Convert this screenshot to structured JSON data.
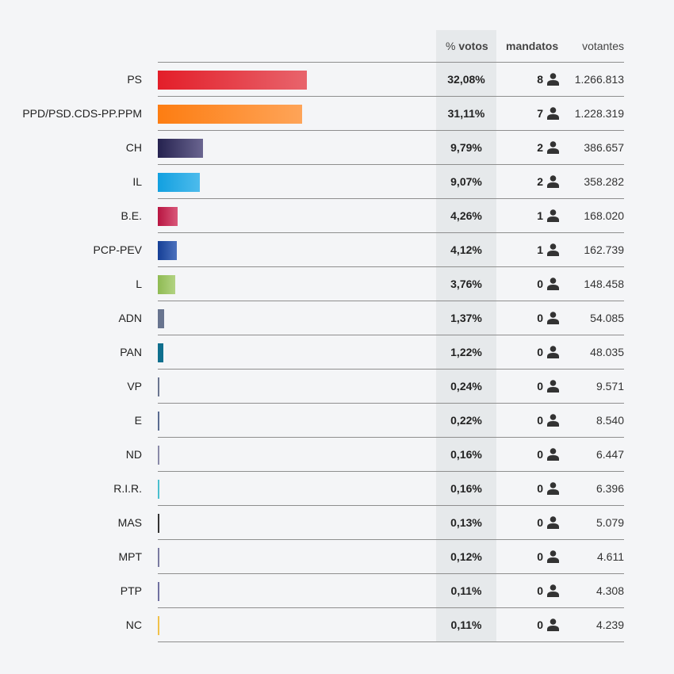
{
  "headers": {
    "pct_prefix": "% ",
    "pct": "votos",
    "seats": "mandatos",
    "votes": "votantes"
  },
  "chart_data": {
    "type": "bar",
    "orientation": "horizontal",
    "unit": "%",
    "categories": [
      "PS",
      "PPD/PSD.CDS-PP.PPM",
      "CH",
      "IL",
      "B.E.",
      "PCP-PEV",
      "L",
      "ADN",
      "PAN",
      "VP",
      "E",
      "ND",
      "R.I.R.",
      "MAS",
      "MPT",
      "PTP",
      "NC"
    ],
    "values": [
      32.08,
      31.11,
      9.79,
      9.07,
      4.26,
      4.12,
      3.76,
      1.37,
      1.22,
      0.24,
      0.22,
      0.16,
      0.16,
      0.13,
      0.12,
      0.11,
      0.11
    ],
    "pct_labels": [
      "32,08%",
      "31,11%",
      "9,79%",
      "9,07%",
      "4,26%",
      "4,12%",
      "3,76%",
      "1,37%",
      "1,22%",
      "0,24%",
      "0,22%",
      "0,16%",
      "0,16%",
      "0,13%",
      "0,12%",
      "0,11%",
      "0,11%"
    ],
    "seats": [
      "8",
      "7",
      "2",
      "2",
      "1",
      "1",
      "0",
      "0",
      "0",
      "0",
      "0",
      "0",
      "0",
      "0",
      "0",
      "0",
      "0"
    ],
    "votes": [
      "1.266.813",
      "1.228.319",
      "386.657",
      "358.282",
      "168.020",
      "162.739",
      "148.458",
      "54.085",
      "48.035",
      "9.571",
      "8.540",
      "6.447",
      "6.396",
      "5.079",
      "4.611",
      "4.308",
      "4.239"
    ],
    "colors": [
      [
        "#e31e29",
        "#e8646c"
      ],
      [
        "#fd7d12",
        "#fea458"
      ],
      [
        "#25224f",
        "#6a6590"
      ],
      [
        "#12a0e0",
        "#4dbbec"
      ],
      [
        "#b81541",
        "#d9587a"
      ],
      [
        "#153f96",
        "#4c71bd"
      ],
      [
        "#8fba53",
        "#b2d382"
      ],
      [
        "#68748f",
        "#68748f"
      ],
      [
        "#0f6f8e",
        "#0f6f8e"
      ],
      [
        "#6b7590",
        "#6b7590"
      ],
      [
        "#5a6b90",
        "#5a6b90"
      ],
      [
        "#8a8aa8",
        "#8a8aa8"
      ],
      [
        "#4bbfcf",
        "#4bbfcf"
      ],
      [
        "#333333",
        "#333333"
      ],
      [
        "#7a7aa0",
        "#7a7aa0"
      ],
      [
        "#7070a0",
        "#7070a0"
      ],
      [
        "#f0c14a",
        "#f0c14a"
      ]
    ]
  },
  "icon": "person-icon"
}
